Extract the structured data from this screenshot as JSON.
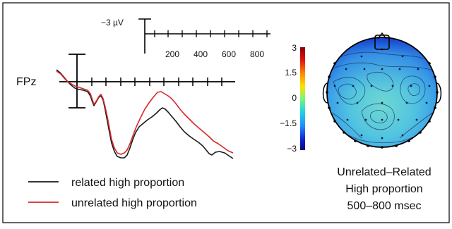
{
  "scale_bar": {
    "amplitude_label": "−3 µV",
    "time_ticks": [
      "200",
      "400",
      "600",
      "800"
    ]
  },
  "electrode": {
    "label": "FPz"
  },
  "legend": [
    {
      "label": "related high proportion",
      "color": "#1a1a1a"
    },
    {
      "label": "unrelated high proportion",
      "color": "#d62a2a"
    }
  ],
  "colorbar": {
    "ticks": [
      "3",
      "1.5",
      "0",
      "−1.5",
      "−3"
    ]
  },
  "topo_caption": {
    "line1": "Unrelated–Related",
    "line2": "High proportion",
    "line3": "500–800 msec"
  },
  "colors": {
    "related": "#1a1a1a",
    "unrelated": "#d62a2a"
  }
}
